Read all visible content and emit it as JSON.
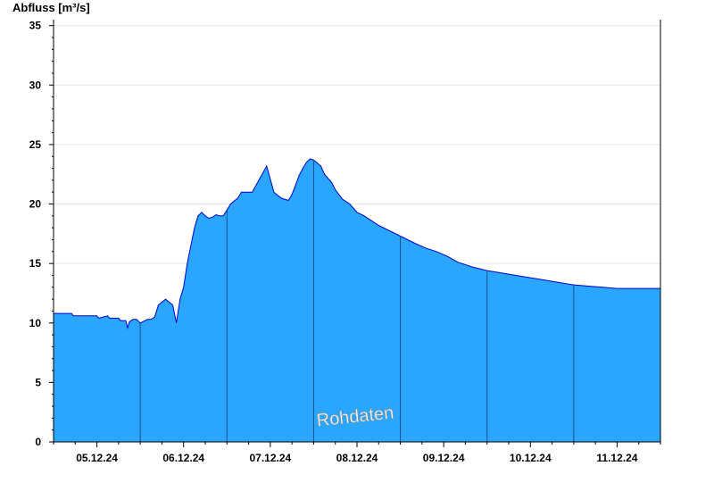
{
  "chart_data": {
    "type": "area",
    "title": "",
    "xlabel": "",
    "ylabel": "Abfluss [m³/s]",
    "ylim": [
      0,
      35.5
    ],
    "yticks": [
      0,
      5,
      10,
      15,
      20,
      25,
      30,
      35
    ],
    "xlim": [
      "2024-12-04T12:00",
      "2024-12-11T12:00"
    ],
    "xticks": [
      "05.12.24",
      "06.12.24",
      "07.12.24",
      "08.12.24",
      "09.12.24",
      "10.12.24",
      "11.12.24"
    ],
    "day_separators": [
      "2024-12-05T12:00",
      "2024-12-06T12:00",
      "2024-12-07T12:00",
      "2024-12-08T12:00",
      "2024-12-09T12:00",
      "2024-12-10T12:00"
    ],
    "grid": true,
    "watermark": "Rohdaten",
    "colors": {
      "fill": "#2aa6ff",
      "line": "#0000cc",
      "separator": "#1a4f8a",
      "grid": "#e6e6e6"
    },
    "series": [
      {
        "x": [
          "2024-12-04T12:00",
          "2024-12-04T17:00",
          "2024-12-04T17:30",
          "2024-12-05T00:00",
          "2024-12-05T00:30",
          "2024-12-05T03:00",
          "2024-12-05T03:30",
          "2024-12-05T06:00",
          "2024-12-05T06:30",
          "2024-12-05T08:00",
          "2024-12-05T08:30",
          "2024-12-05T09:00",
          "2024-12-05T10:00",
          "2024-12-05T11:00",
          "2024-12-05T12:00",
          "2024-12-05T14:00",
          "2024-12-05T15:00",
          "2024-12-05T16:00",
          "2024-12-05T17:00",
          "2024-12-05T19:00",
          "2024-12-05T21:00",
          "2024-12-05T22:00",
          "2024-12-05T23:00",
          "2024-12-06T00:00",
          "2024-12-06T01:00",
          "2024-12-06T02:00",
          "2024-12-06T03:00",
          "2024-12-06T04:00",
          "2024-12-06T05:00",
          "2024-12-06T06:00",
          "2024-12-06T07:00",
          "2024-12-06T08:00",
          "2024-12-06T09:00",
          "2024-12-06T10:00",
          "2024-12-06T11:00",
          "2024-12-06T12:00",
          "2024-12-06T13:00",
          "2024-12-06T15:00",
          "2024-12-06T16:00",
          "2024-12-06T19:00",
          "2024-12-06T23:00",
          "2024-12-07T01:00",
          "2024-12-07T03:00",
          "2024-12-07T05:00",
          "2024-12-07T06:00",
          "2024-12-07T07:00",
          "2024-12-07T08:00",
          "2024-12-07T09:00",
          "2024-12-07T10:00",
          "2024-12-07T11:00",
          "2024-12-07T12:00",
          "2024-12-07T14:00",
          "2024-12-07T15:00",
          "2024-12-07T17:00",
          "2024-12-07T18:00",
          "2024-12-07T19:00",
          "2024-12-07T20:00",
          "2024-12-07T22:00",
          "2024-12-08T00:00",
          "2024-12-08T02:00",
          "2024-12-08T04:00",
          "2024-12-08T06:00",
          "2024-12-08T08:00",
          "2024-12-08T10:00",
          "2024-12-08T12:00",
          "2024-12-08T14:00",
          "2024-12-08T16:00",
          "2024-12-08T19:00",
          "2024-12-08T22:00",
          "2024-12-09T01:00",
          "2024-12-09T04:00",
          "2024-12-09T08:00",
          "2024-12-09T12:00",
          "2024-12-09T16:00",
          "2024-12-09T20:00",
          "2024-12-10T00:00",
          "2024-12-10T04:00",
          "2024-12-10T08:00",
          "2024-12-10T12:00",
          "2024-12-10T16:00",
          "2024-12-10T20:00",
          "2024-12-11T00:00",
          "2024-12-11T04:00",
          "2024-12-11T08:00",
          "2024-12-11T12:00"
        ],
        "y": [
          10.8,
          10.8,
          10.6,
          10.6,
          10.4,
          10.6,
          10.4,
          10.4,
          10.2,
          10.2,
          9.6,
          10.1,
          10.3,
          10.3,
          10.0,
          10.3,
          10.3,
          10.5,
          11.5,
          12.0,
          11.5,
          10.0,
          12.0,
          13.0,
          15.0,
          16.5,
          18.0,
          19.0,
          19.3,
          19.0,
          18.8,
          18.9,
          19.1,
          19.0,
          19.0,
          19.5,
          20.0,
          20.5,
          21.0,
          21.0,
          23.2,
          21.0,
          20.5,
          20.3,
          20.8,
          21.6,
          22.4,
          23.0,
          23.5,
          23.8,
          23.7,
          23.2,
          22.5,
          21.8,
          21.2,
          20.8,
          20.4,
          20.0,
          19.3,
          19.0,
          18.6,
          18.2,
          17.9,
          17.6,
          17.3,
          17.0,
          16.7,
          16.3,
          16.0,
          15.6,
          15.1,
          14.7,
          14.4,
          14.2,
          14.0,
          13.8,
          13.6,
          13.4,
          13.2,
          13.1,
          13.0,
          12.9,
          12.9,
          12.9,
          12.9
        ]
      }
    ]
  }
}
